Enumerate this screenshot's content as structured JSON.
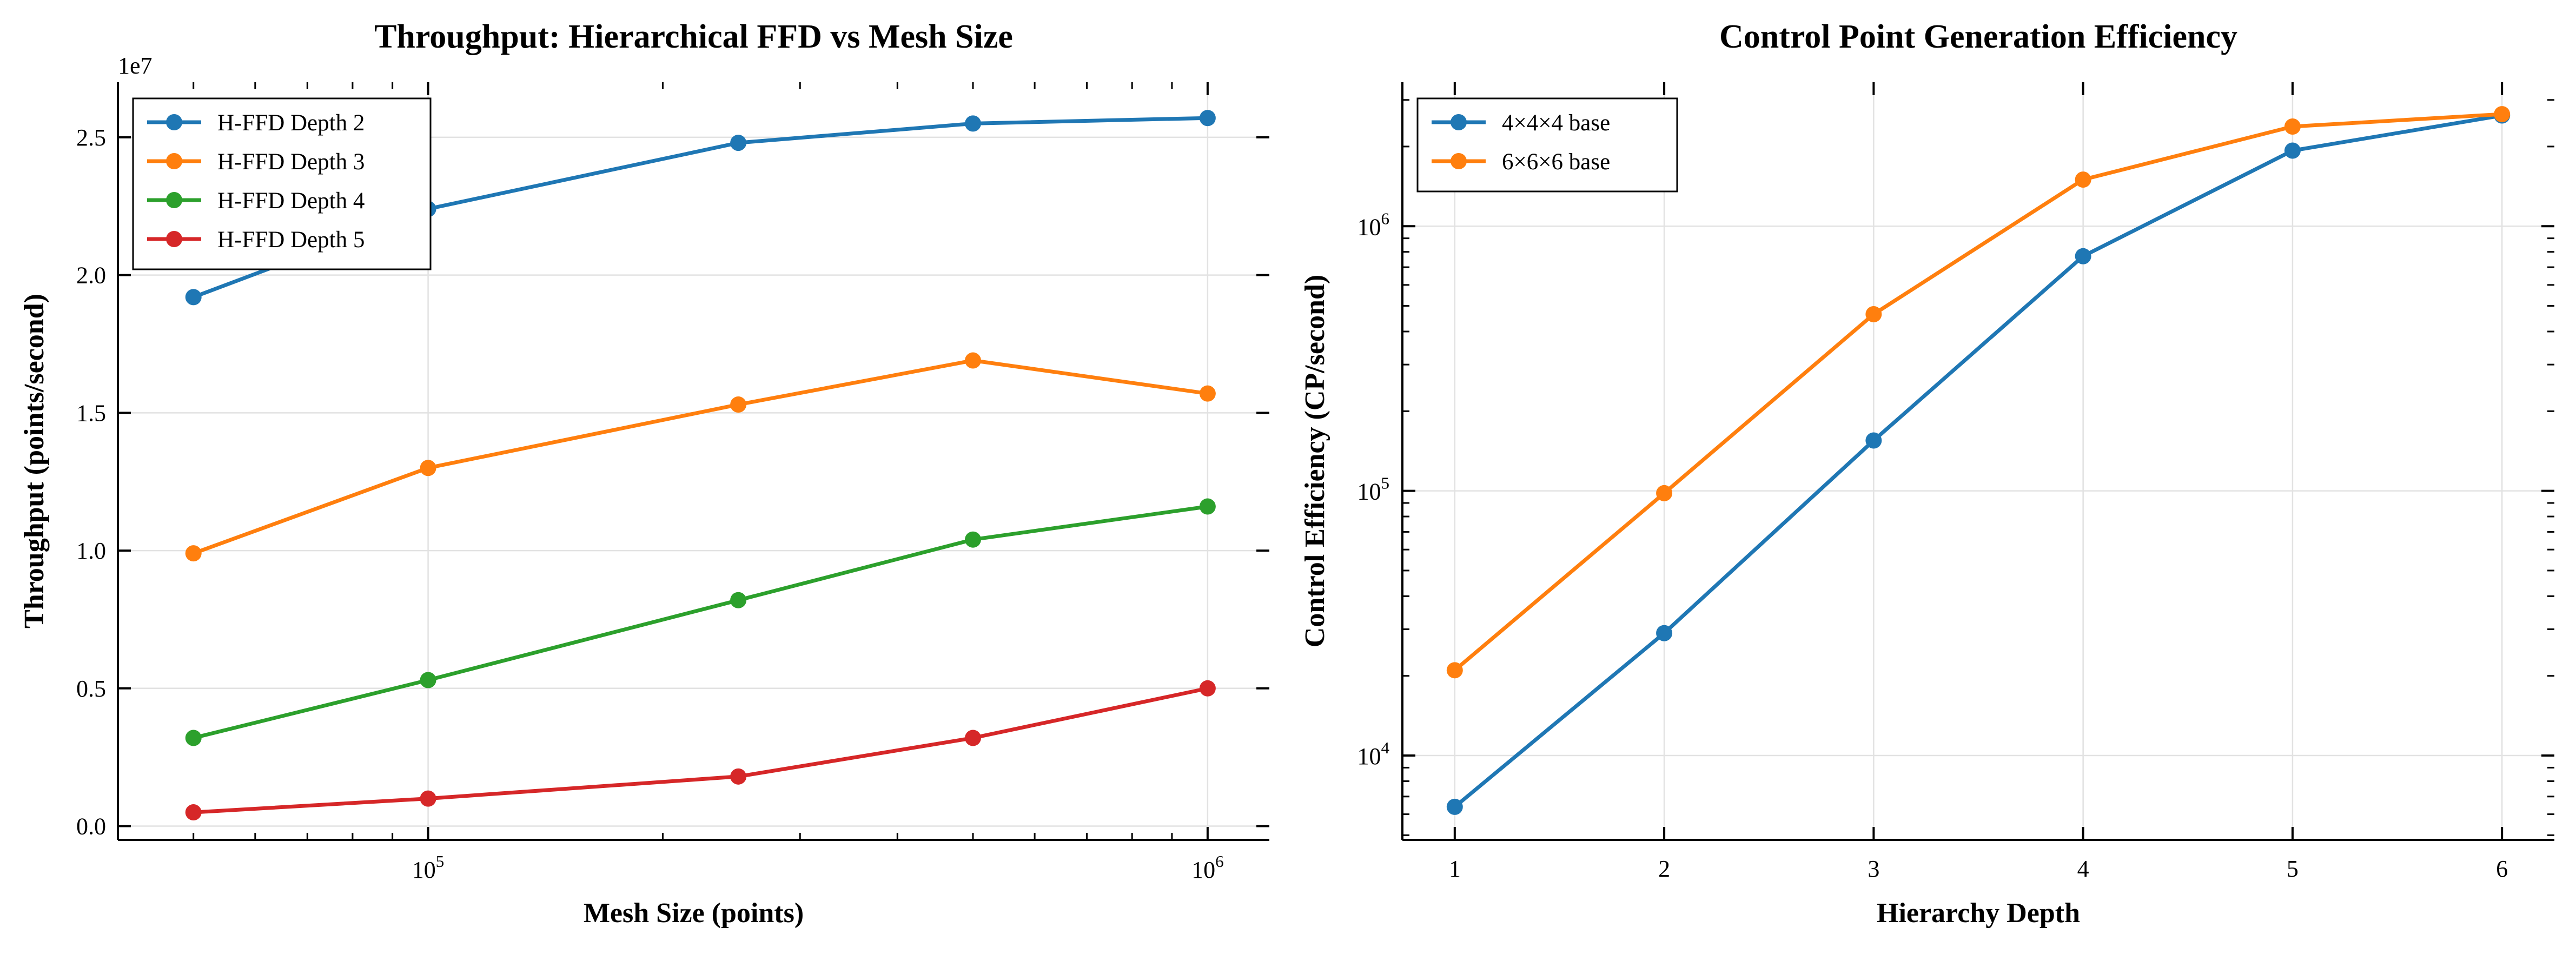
{
  "chart_data": [
    {
      "type": "line",
      "title": "Throughput: Hierarchical FFD vs Mesh Size",
      "xlabel": "Mesh Size (points)",
      "ylabel": "Throughput (points/second)",
      "x_scale": "log",
      "y_scale": "linear",
      "y_offset_label": "1e7",
      "xlim": [
        40000,
        1200000
      ],
      "ylim": [
        -0.05,
        2.7
      ],
      "x_tick_labels": [
        {
          "value": 100000,
          "base": "10",
          "exp": "5"
        },
        {
          "value": 1000000,
          "base": "10",
          "exp": "6"
        }
      ],
      "y_tick_labels": [
        {
          "value": 0.0,
          "label": "0.0"
        },
        {
          "value": 0.5,
          "label": "0.5"
        },
        {
          "value": 1.0,
          "label": "1.0"
        },
        {
          "value": 1.5,
          "label": "1.5"
        },
        {
          "value": 2.0,
          "label": "2.0"
        },
        {
          "value": 2.5,
          "label": "2.5"
        }
      ],
      "grid": true,
      "legend_position": "upper-left",
      "x": [
        50000,
        100000,
        250000,
        500000,
        1000000
      ],
      "series": [
        {
          "name": "H-FFD Depth 2",
          "color": "#1f77b4",
          "values": [
            1.92,
            2.24,
            2.48,
            2.55,
            2.57
          ]
        },
        {
          "name": "H-FFD Depth 3",
          "color": "#ff7f0e",
          "values": [
            0.99,
            1.3,
            1.53,
            1.69,
            1.57
          ]
        },
        {
          "name": "H-FFD Depth 4",
          "color": "#2ca02c",
          "values": [
            0.32,
            0.53,
            0.82,
            1.04,
            1.16
          ]
        },
        {
          "name": "H-FFD Depth 5",
          "color": "#d62728",
          "values": [
            0.05,
            0.1,
            0.18,
            0.32,
            0.5
          ]
        }
      ]
    },
    {
      "type": "line",
      "title": "Control Point Generation Efficiency",
      "xlabel": "Hierarchy Depth",
      "ylabel": "Control Efficiency (CP/second)",
      "x_scale": "linear",
      "y_scale": "log",
      "xlim": [
        0.75,
        6.25
      ],
      "ylim": [
        4800,
        3500000
      ],
      "x_tick_labels": [
        {
          "value": 1,
          "label": "1"
        },
        {
          "value": 2,
          "label": "2"
        },
        {
          "value": 3,
          "label": "3"
        },
        {
          "value": 4,
          "label": "4"
        },
        {
          "value": 5,
          "label": "5"
        },
        {
          "value": 6,
          "label": "6"
        }
      ],
      "y_tick_labels": [
        {
          "value": 10000,
          "base": "10",
          "exp": "4"
        },
        {
          "value": 100000,
          "base": "10",
          "exp": "5"
        },
        {
          "value": 1000000,
          "base": "10",
          "exp": "6"
        }
      ],
      "grid": true,
      "legend_position": "upper-left",
      "x": [
        1,
        2,
        3,
        4,
        5,
        6
      ],
      "series": [
        {
          "name": "4×4×4 base",
          "color": "#1f77b4",
          "values": [
            6400,
            29000,
            155000,
            770000,
            1930000,
            2620000
          ]
        },
        {
          "name": "6×6×6 base",
          "color": "#ff7f0e",
          "values": [
            21000,
            98000,
            465000,
            1500000,
            2380000,
            2650000
          ]
        }
      ]
    }
  ]
}
